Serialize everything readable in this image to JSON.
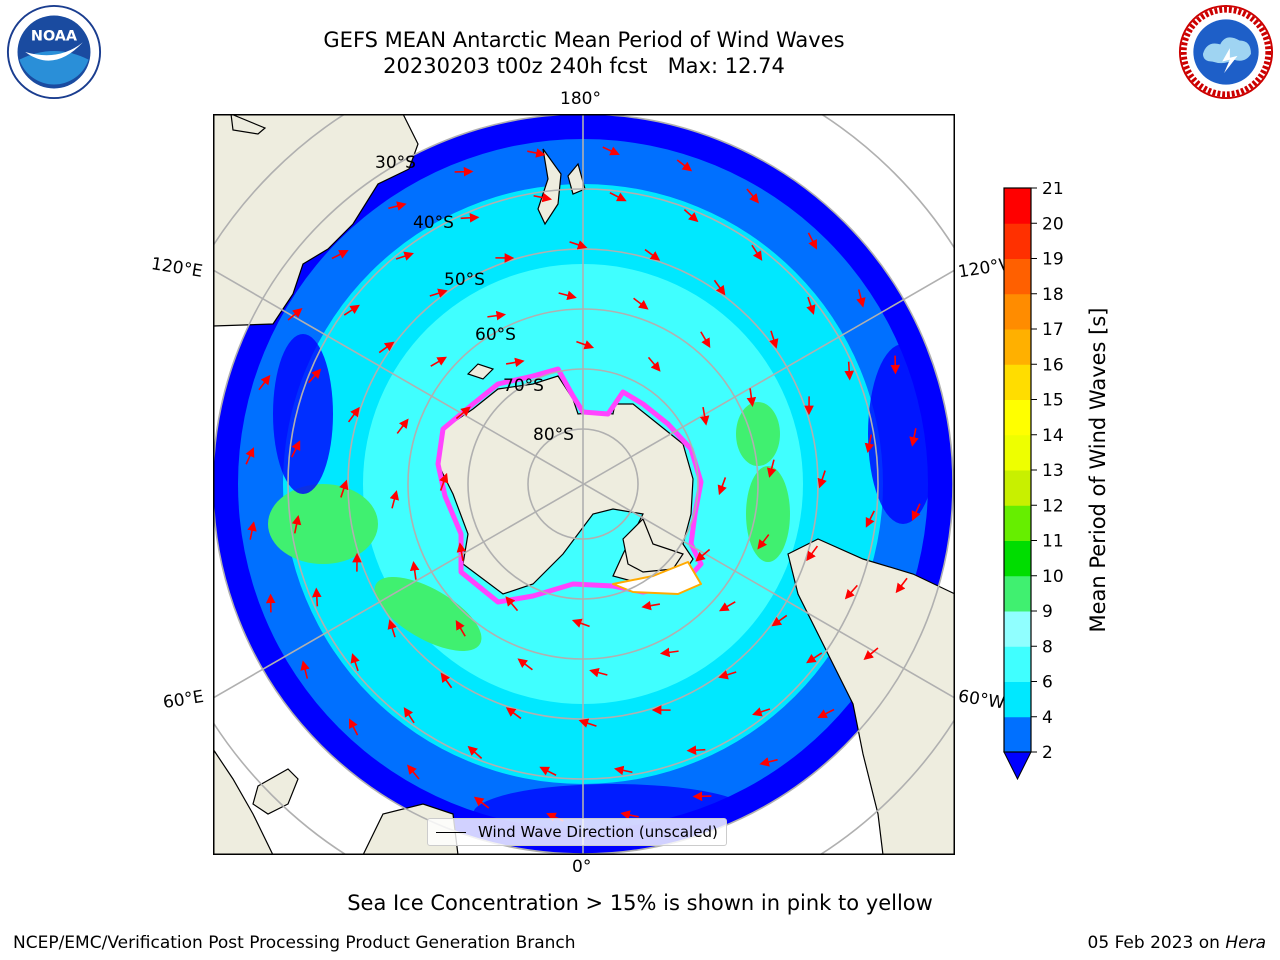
{
  "title": {
    "line1": "GEFS MEAN Antarctic Mean Period of Wind Waves",
    "line2": "20230203 t00z 240h fcst   Max: 12.74"
  },
  "map": {
    "projection": "south-polar-stereographic",
    "lon_labels": {
      "top": "180°",
      "bottom": "0°",
      "upper_left": "120°E",
      "upper_right": "120°W",
      "lower_left": "60°E",
      "lower_right": "60°W"
    },
    "lat_labels": [
      "30°S",
      "40°S",
      "50°S",
      "60°S",
      "70°S",
      "80°S"
    ],
    "colors": {
      "land": "#eeeddf",
      "gridline": "#b0b0b0",
      "arrows": "#ff0000",
      "sea_ice": "#ff44ff"
    },
    "legend_label": "Wind Wave Direction (unscaled)"
  },
  "colorbar": {
    "label": "Mean Period of Wind Waves [s]",
    "ticks": [
      "2",
      "4",
      "6",
      "8",
      "9",
      "10",
      "11",
      "12",
      "13",
      "14",
      "15",
      "16",
      "17",
      "18",
      "19",
      "20",
      "21"
    ],
    "colors": [
      "#0070ff",
      "#00e8ff",
      "#40ffff",
      "#90ffff",
      "#40f070",
      "#00dd00",
      "#66ee00",
      "#c8f000",
      "#eeff00",
      "#ffff00",
      "#ffdd00",
      "#ffb000",
      "#ff8c00",
      "#ff6000",
      "#ff3000",
      "#ff0000"
    ],
    "under_color": "#0000ff"
  },
  "note": "Sea Ice Concentration > 15% is shown in pink to yellow",
  "footer": {
    "left": "NCEP/EMC/Verification Post Processing Product Generation Branch",
    "right_date": "05 Feb 2023 on ",
    "right_host": "Hera"
  },
  "logos": {
    "noaa_text": "NOAA"
  }
}
